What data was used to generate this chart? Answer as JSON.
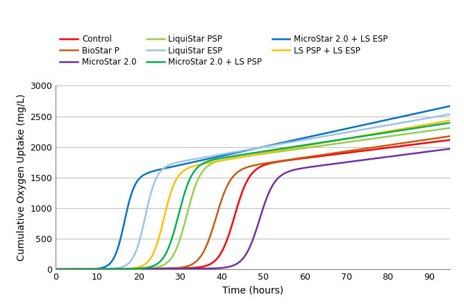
{
  "title": "",
  "xlabel": "Time (hours)",
  "ylabel": "Cumulative Oxygen Uptake (mg/L)",
  "xlim": [
    0,
    95
  ],
  "ylim": [
    0,
    3000
  ],
  "xticks": [
    0,
    10,
    20,
    30,
    40,
    50,
    60,
    70,
    80,
    90
  ],
  "yticks": [
    0,
    500,
    1000,
    1500,
    2000,
    2500,
    3000
  ],
  "series": [
    {
      "label": "Control",
      "color": "#FF0000",
      "t0": 43.0,
      "k": 0.55,
      "L": 1650,
      "slope": 8.0,
      "pre_slope": 0.5
    },
    {
      "label": "LiquiStar PSP",
      "color": "#92D050",
      "t0": 31.5,
      "k": 0.6,
      "L": 1700,
      "slope": 9.0,
      "pre_slope": 0.4
    },
    {
      "label": "MicroStar 2.0 + LS ESP",
      "color": "#0070C0",
      "t0": 16.5,
      "k": 0.8,
      "L": 1500,
      "slope": 14.5,
      "pre_slope": 0.3
    },
    {
      "label": "BioStar P",
      "color": "#C55A11",
      "t0": 38.5,
      "k": 0.55,
      "L": 1600,
      "slope": 9.5,
      "pre_slope": 0.4
    },
    {
      "label": "LiquiStar ESP",
      "color": "#9DC3E6",
      "t0": 21.5,
      "k": 0.72,
      "L": 1650,
      "slope": 11.5,
      "pre_slope": 0.4
    },
    {
      "label": "LS PSP + LS ESP",
      "color": "#FFC000",
      "t0": 26.0,
      "k": 0.68,
      "L": 1600,
      "slope": 11.5,
      "pre_slope": 0.4
    },
    {
      "label": "MicroStar 2.0",
      "color": "#7030A0",
      "t0": 49.0,
      "k": 0.55,
      "L": 1550,
      "slope": 8.5,
      "pre_slope": 0.3
    },
    {
      "label": "MicroStar 2.0 + LS PSP",
      "color": "#00B050",
      "t0": 29.5,
      "k": 0.6,
      "L": 1700,
      "slope": 10.0,
      "pre_slope": 0.4
    }
  ],
  "legend_order": [
    0,
    3,
    6,
    1,
    4,
    7,
    2,
    5
  ],
  "background_color": "#FFFFFF",
  "grid_color": "#C0C0C0",
  "linewidth": 1.8
}
